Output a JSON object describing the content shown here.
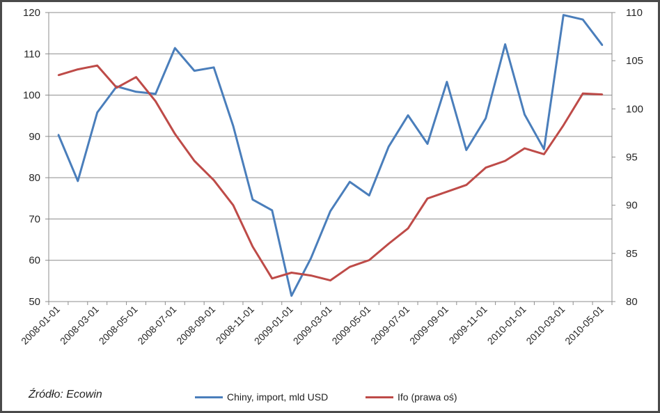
{
  "source_note": "Źródło: Ecowin",
  "colors": {
    "import": "#4a7ebb",
    "ifo": "#be4b48",
    "grid": "#8c8c8c"
  },
  "chart_data": {
    "type": "line",
    "x": [
      "2008-01-01",
      "2008-02-01",
      "2008-03-01",
      "2008-04-01",
      "2008-05-01",
      "2008-06-01",
      "2008-07-01",
      "2008-08-01",
      "2008-09-01",
      "2008-10-01",
      "2008-11-01",
      "2008-12-01",
      "2009-01-01",
      "2009-02-01",
      "2009-03-01",
      "2009-04-01",
      "2009-05-01",
      "2009-06-01",
      "2009-07-01",
      "2009-08-01",
      "2009-09-01",
      "2009-10-01",
      "2009-11-01",
      "2009-12-01",
      "2010-01-01",
      "2010-02-01",
      "2010-03-01",
      "2010-04-01",
      "2010-05-01"
    ],
    "x_tick_labels": [
      "2008-01-01",
      "2008-03-01",
      "2008-05-01",
      "2008-07-01",
      "2008-09-01",
      "2008-11-01",
      "2009-01-01",
      "2009-03-01",
      "2009-05-01",
      "2009-07-01",
      "2009-09-01",
      "2009-11-01",
      "2010-01-01",
      "2010-03-01",
      "2010-05-01"
    ],
    "ylim_left": [
      50,
      120
    ],
    "y_ticks_left": [
      "50",
      "60",
      "70",
      "80",
      "90",
      "100",
      "110",
      "120"
    ],
    "ylim_right": [
      80,
      110
    ],
    "y_ticks_right": [
      "80",
      "85",
      "90",
      "95",
      "100",
      "105",
      "110"
    ],
    "grid": true,
    "legend_position": "bottom",
    "series": [
      {
        "name": "Chiny, import, mld USD",
        "axis": "left",
        "values": [
          90.4,
          79.2,
          95.8,
          102.1,
          100.8,
          100.3,
          111.4,
          105.9,
          106.7,
          92.5,
          74.7,
          72.1,
          51.4,
          60.5,
          71.9,
          79.0,
          75.7,
          87.5,
          95.1,
          88.2,
          103.2,
          86.7,
          94.4,
          112.3,
          95.3,
          86.9,
          119.4,
          118.3,
          112.1
        ]
      },
      {
        "name": "Ifo (prawa oś)",
        "axis": "right",
        "values": [
          103.5,
          104.1,
          104.5,
          102.2,
          103.3,
          100.8,
          97.4,
          94.6,
          92.6,
          90.0,
          85.7,
          82.4,
          83.0,
          82.7,
          82.2,
          83.6,
          84.3,
          86.0,
          87.6,
          90.7,
          91.4,
          92.1,
          93.9,
          94.6,
          95.9,
          95.3,
          98.3,
          101.6,
          101.5
        ]
      }
    ]
  }
}
